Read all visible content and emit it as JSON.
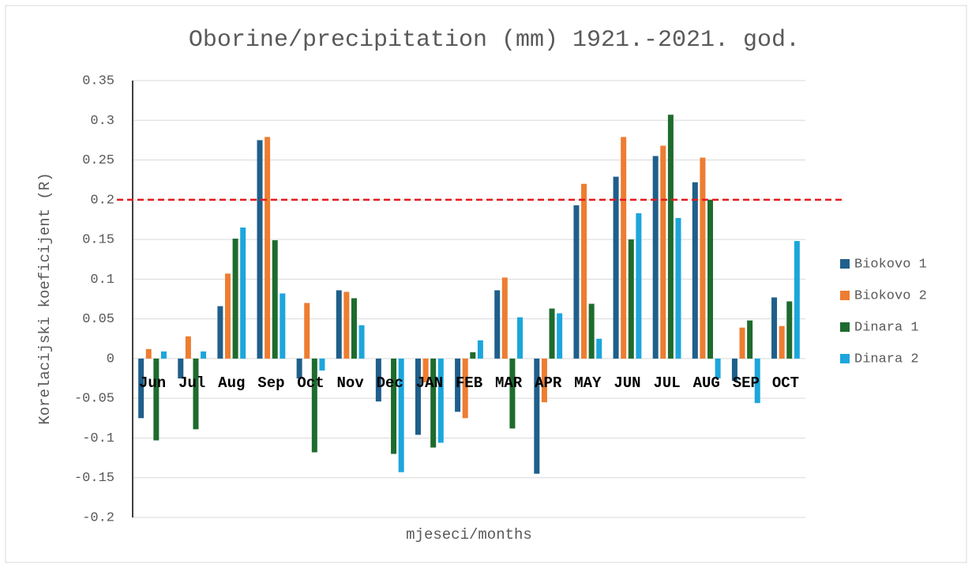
{
  "chart_data": {
    "type": "bar",
    "title": "Oborine/precipitation (mm) 1921.-2021. god.",
    "x_label": "mjeseci/months",
    "y_label": "Korelacijski koeficijent (R)",
    "categories": [
      "Jun",
      "Jul",
      "Aug",
      "Sep",
      "Oct",
      "Nov",
      "Dec",
      "JAN",
      "FEB",
      "MAR",
      "APR",
      "MAY",
      "JUN",
      "JUL",
      "AUG",
      "SEP",
      "OCT"
    ],
    "series": [
      {
        "name": "Biokovo 1",
        "color": "#1f5f8b",
        "values": [
          -0.075,
          -0.025,
          0.066,
          0.275,
          -0.025,
          0.086,
          -0.054,
          -0.096,
          -0.067,
          0.086,
          -0.145,
          0.193,
          0.229,
          0.255,
          0.222,
          -0.028,
          0.077
        ]
      },
      {
        "name": "Biokovo 2",
        "color": "#ed7d31",
        "values": [
          0.012,
          0.028,
          0.107,
          0.279,
          0.07,
          0.084,
          0,
          -0.03,
          -0.075,
          0.102,
          -0.055,
          0.22,
          0.279,
          0.268,
          0.253,
          0.039,
          0.041
        ]
      },
      {
        "name": "Dinara 1",
        "color": "#1e6b2e",
        "values": [
          -0.103,
          -0.089,
          0.151,
          0.149,
          -0.118,
          0.076,
          -0.12,
          -0.112,
          0.008,
          -0.088,
          0.063,
          0.069,
          0.15,
          0.307,
          0.2,
          0.048,
          0.072
        ]
      },
      {
        "name": "Dinara 2",
        "color": "#1ca6dc",
        "values": [
          0.009,
          0.009,
          0.165,
          0.082,
          -0.015,
          0.042,
          -0.143,
          -0.106,
          0.023,
          0.052,
          0.057,
          0.025,
          0.183,
          0.177,
          -0.025,
          -0.056,
          0.148
        ]
      }
    ],
    "ylim": [
      -0.2,
      0.35
    ],
    "yticks": [
      -0.2,
      -0.15,
      -0.1,
      -0.05,
      0,
      0.05,
      0.1,
      0.15,
      0.2,
      0.25,
      0.3,
      0.35
    ],
    "grid": true,
    "legend": "right",
    "reference_line": {
      "value": 0.2,
      "color": "#e31a1c"
    }
  }
}
